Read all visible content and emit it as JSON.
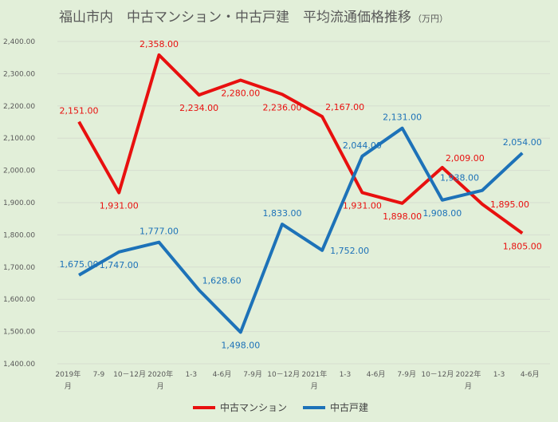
{
  "chart_data": {
    "type": "line",
    "title": "福山市内　中古マンション・中古戸建　平均流通価格推移",
    "title_unit": "（万円）",
    "ylim": [
      1400,
      2400
    ],
    "yticks": [
      "1,400.00",
      "1,500.00",
      "1,600.00",
      "1,700.00",
      "1,800.00",
      "1,900.00",
      "2,000.00",
      "2,100.00",
      "2,200.00",
      "2,300.00",
      "2,400.00"
    ],
    "categories": [
      [
        "2019年",
        "月"
      ],
      [
        "7-9"
      ],
      [
        "10－12月"
      ],
      [
        "2020年",
        "月"
      ],
      [
        "1-3"
      ],
      [
        "4-6月"
      ],
      [
        "7-9月"
      ],
      [
        "10－12月"
      ],
      [
        "2021年",
        "月"
      ],
      [
        "1-3"
      ],
      [
        "4-6月"
      ],
      [
        "7-9月"
      ],
      [
        "10－12月"
      ],
      [
        "2022年",
        "月"
      ],
      [
        "1-3"
      ],
      [
        "4-6月"
      ]
    ],
    "grid": true,
    "legend_position": "bottom",
    "series": [
      {
        "name": "中古マンション",
        "color": "#e8100f",
        "points": [
          {
            "x": 0.7,
            "y": 2151,
            "label": "2,151.00",
            "side": "above"
          },
          {
            "x": 2.0,
            "y": 1931,
            "label": "1,931.00",
            "side": "below"
          },
          {
            "x": 3.3,
            "y": 2358,
            "label": "2,358.00",
            "side": "above"
          },
          {
            "x": 4.6,
            "y": 2234,
            "label": "2,234.00",
            "side": "below"
          },
          {
            "x": 5.95,
            "y": 2280,
            "label": "2,280.00",
            "side": "below"
          },
          {
            "x": 7.3,
            "y": 2236,
            "label": "2,236.00",
            "side": "below"
          },
          {
            "x": 8.6,
            "y": 2167,
            "label": "2,167.00",
            "side": "above-right"
          },
          {
            "x": 9.9,
            "y": 1931,
            "label": "1,931.00",
            "side": "below"
          },
          {
            "x": 11.2,
            "y": 1898,
            "label": "1,898.00",
            "side": "below"
          },
          {
            "x": 12.5,
            "y": 2009,
            "label": "2,009.00",
            "side": "above-right"
          },
          {
            "x": 13.8,
            "y": 1895,
            "label": "1,895.00",
            "side": "right"
          },
          {
            "x": 15.1,
            "y": 1805,
            "label": "1,805.00",
            "side": "below"
          }
        ]
      },
      {
        "name": "中古戸建",
        "color": "#1d72b8",
        "points": [
          {
            "x": 0.7,
            "y": 1675,
            "label": "1,675.00",
            "side": "above"
          },
          {
            "x": 2.0,
            "y": 1747,
            "label": "1,747.00",
            "side": "below"
          },
          {
            "x": 3.3,
            "y": 1777,
            "label": "1,777.00",
            "side": "above"
          },
          {
            "x": 4.6,
            "y": 1628.6,
            "label": "1,628.60",
            "side": "above-right"
          },
          {
            "x": 5.95,
            "y": 1498,
            "label": "1,498.00",
            "side": "below"
          },
          {
            "x": 7.3,
            "y": 1833,
            "label": "1,833.00",
            "side": "above"
          },
          {
            "x": 8.6,
            "y": 1752,
            "label": "1,752.00",
            "side": "right"
          },
          {
            "x": 9.9,
            "y": 2044,
            "label": "2,044.00",
            "side": "above"
          },
          {
            "x": 11.2,
            "y": 2131,
            "label": "2,131.00",
            "side": "above"
          },
          {
            "x": 12.5,
            "y": 1908,
            "label": "1,908.00",
            "side": "below"
          },
          {
            "x": 13.8,
            "y": 1938,
            "label": "1,938.00",
            "side": "above-left"
          },
          {
            "x": 15.1,
            "y": 2054,
            "label": "2,054.00",
            "side": "above"
          }
        ]
      }
    ]
  }
}
